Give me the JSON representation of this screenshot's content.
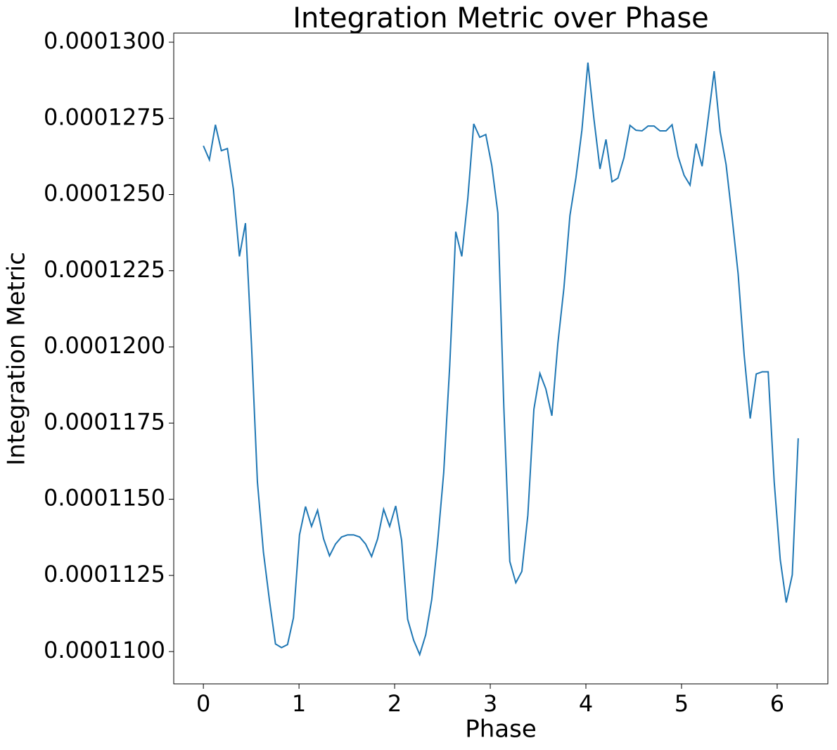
{
  "chart_data": {
    "type": "line",
    "title": "Integration Metric over Phase",
    "x_label": "Phase",
    "y_label": "Integration Metric",
    "color": "#1f77b4",
    "xlim": [
      -0.31,
      6.53
    ],
    "ylim": [
      0.00010894,
      0.0001303
    ],
    "xticks": [
      0,
      1,
      2,
      3,
      4,
      5,
      6
    ],
    "yticks": [
      {
        "value": 0.00011,
        "label": "0.0001100"
      },
      {
        "value": 0.0001125,
        "label": "0.0001125"
      },
      {
        "value": 0.000115,
        "label": "0.0001150"
      },
      {
        "value": 0.0001175,
        "label": "0.0001175"
      },
      {
        "value": 0.00012,
        "label": "0.0001200"
      },
      {
        "value": 0.0001225,
        "label": "0.0001225"
      },
      {
        "value": 0.000125,
        "label": "0.0001250"
      },
      {
        "value": 0.0001275,
        "label": "0.0001275"
      },
      {
        "value": 0.00013,
        "label": "0.0001300"
      }
    ],
    "x": [
      0,
      0.063,
      0.126,
      0.188,
      0.251,
      0.314,
      0.377,
      0.44,
      0.503,
      0.565,
      0.628,
      0.691,
      0.754,
      0.817,
      0.88,
      0.942,
      1.005,
      1.068,
      1.131,
      1.194,
      1.257,
      1.319,
      1.382,
      1.445,
      1.508,
      1.571,
      1.634,
      1.696,
      1.759,
      1.822,
      1.885,
      1.948,
      2.011,
      2.073,
      2.136,
      2.199,
      2.262,
      2.325,
      2.388,
      2.45,
      2.513,
      2.576,
      2.639,
      2.702,
      2.765,
      2.827,
      2.89,
      2.953,
      3.016,
      3.079,
      3.142,
      3.204,
      3.267,
      3.33,
      3.393,
      3.456,
      3.519,
      3.581,
      3.644,
      3.707,
      3.77,
      3.833,
      3.896,
      3.958,
      4.021,
      4.084,
      4.147,
      4.21,
      4.273,
      4.335,
      4.398,
      4.461,
      4.524,
      4.587,
      4.65,
      4.712,
      4.775,
      4.838,
      4.901,
      4.964,
      5.027,
      5.089,
      5.152,
      5.215,
      5.278,
      5.341,
      5.404,
      5.466,
      5.529,
      5.592,
      5.655,
      5.718,
      5.781,
      5.843,
      5.906,
      5.969,
      6.032,
      6.095,
      6.158,
      6.22
    ],
    "values": [
      0.0001266,
      0.00012614,
      0.00012729,
      0.00012644,
      0.00012651,
      0.00012517,
      0.00012297,
      0.00012406,
      0.00012008,
      0.00011557,
      0.00011326,
      0.00011168,
      0.00011025,
      0.00011013,
      0.00011023,
      0.00011111,
      0.00011383,
      0.00011476,
      0.00011411,
      0.00011464,
      0.0001137,
      0.00011314,
      0.00011353,
      0.00011376,
      0.00011383,
      0.00011383,
      0.00011376,
      0.00011353,
      0.00011312,
      0.0001137,
      0.00011467,
      0.00011411,
      0.00011478,
      0.00011365,
      0.00011106,
      0.00011037,
      0.0001099,
      0.00011055,
      0.00011171,
      0.0001136,
      0.00011587,
      0.00011938,
      0.00012378,
      0.00012297,
      0.00012487,
      0.00012732,
      0.00012688,
      0.00012697,
      0.00012595,
      0.0001244,
      0.000118,
      0.00011296,
      0.00011226,
      0.00011263,
      0.00011448,
      0.00011795,
      0.00011913,
      0.00011862,
      0.00011774,
      0.00012012,
      0.00012193,
      0.00012431,
      0.00012556,
      0.00012711,
      0.00012933,
      0.00012748,
      0.00012584,
      0.00012681,
      0.00012542,
      0.00012554,
      0.00012621,
      0.00012727,
      0.00012711,
      0.00012709,
      0.00012725,
      0.00012725,
      0.00012709,
      0.00012709,
      0.00012729,
      0.00012625,
      0.00012563,
      0.00012531,
      0.00012667,
      0.00012593,
      0.00012748,
      0.00012905,
      0.00012706,
      0.00012598,
      0.00012424,
      0.00012239,
      0.00011973,
      0.00011765,
      0.00011911,
      0.00011918,
      0.00011918,
      0.00011557,
      0.00011302,
      0.00011161,
      0.00011252,
      0.000117
    ]
  }
}
